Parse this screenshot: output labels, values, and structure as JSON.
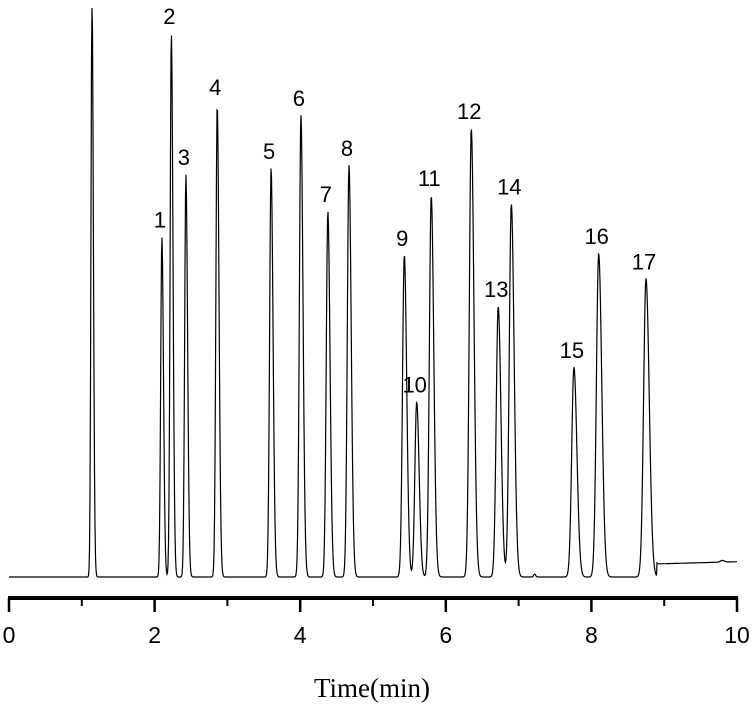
{
  "chart_data": {
    "type": "line",
    "title": "",
    "xlabel": "Time(min)",
    "ylabel": "",
    "xlim": [
      0,
      10
    ],
    "x_ticks": [
      "0",
      "2",
      "4",
      "6",
      "8",
      "10"
    ],
    "x_minor_ticks": [
      1,
      3,
      5,
      7,
      9
    ],
    "y_axis_shown": false,
    "grid": false,
    "line_color": "#000000",
    "intensity_units": "relative (no y axis shown; 100 = top of plot)",
    "solvent_peak": {
      "time": 1.14,
      "height": 100,
      "clipped": true
    },
    "peaks": [
      {
        "label": "1",
        "time": 2.1,
        "height": 59.8
      },
      {
        "label": "2",
        "time": 2.23,
        "height": 95.6
      },
      {
        "label": "3",
        "time": 2.43,
        "height": 70.8
      },
      {
        "label": "4",
        "time": 2.86,
        "height": 83.1
      },
      {
        "label": "5",
        "time": 3.6,
        "height": 71.9
      },
      {
        "label": "6",
        "time": 4.01,
        "height": 81.2
      },
      {
        "label": "7",
        "time": 4.38,
        "height": 64.3
      },
      {
        "label": "8",
        "time": 4.67,
        "height": 72.4
      },
      {
        "label": "9",
        "time": 5.43,
        "height": 56.6
      },
      {
        "label": "10",
        "time": 5.6,
        "height": 30.8
      },
      {
        "label": "11",
        "time": 5.8,
        "height": 67.1
      },
      {
        "label": "12",
        "time": 6.35,
        "height": 78.9
      },
      {
        "label": "13",
        "time": 6.72,
        "height": 47.6
      },
      {
        "label": "14",
        "time": 6.9,
        "height": 65.6
      },
      {
        "label": "15",
        "time": 7.76,
        "height": 36.9
      },
      {
        "label": "16",
        "time": 8.1,
        "height": 56.9
      },
      {
        "label": "17",
        "time": 8.75,
        "height": 52.5
      }
    ]
  }
}
